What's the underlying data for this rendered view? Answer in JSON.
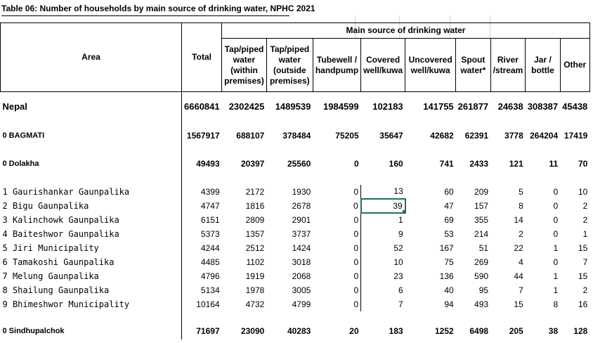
{
  "title": "Table 06: Number of households by main source of drinking water, NPHC 2021",
  "header": {
    "area": "Area",
    "total": "Total",
    "group": "Main source of drinking water",
    "cols": [
      "Tap/piped water (within premises)",
      "Tap/piped water (outside premises)",
      "Tubewell / handpump",
      "Covered well/kuwa",
      "Uncovered well/kuwa",
      "Spout water*",
      "River /stream",
      "Jar / bottle",
      "Other"
    ]
  },
  "rows": [
    {
      "area": "Nepal",
      "values": [
        "6660841",
        "2302425",
        "1489539",
        "1984599",
        "102183",
        "141755",
        "261877",
        "24638",
        "308387",
        "45438"
      ]
    },
    {
      "area": "0 BAGMATI",
      "values": [
        "1567917",
        "688107",
        "378484",
        "75205",
        "35647",
        "42682",
        "62391",
        "3778",
        "264204",
        "17419"
      ]
    },
    {
      "area": "0 Dolakha",
      "values": [
        "49493",
        "20397",
        "25560",
        "0",
        "160",
        "741",
        "2433",
        "121",
        "11",
        "70"
      ]
    },
    {
      "area": "1 Gaurishankar Gaunpalika",
      "values": [
        "4399",
        "2172",
        "1930",
        "0",
        "13",
        "60",
        "209",
        "5",
        "0",
        "10"
      ]
    },
    {
      "area": "2 Bigu Gaunpalika",
      "values": [
        "4747",
        "1816",
        "2678",
        "0",
        "39",
        "47",
        "157",
        "8",
        "0",
        "2"
      ]
    },
    {
      "area": "3 Kalinchowk Gaunpalika",
      "values": [
        "6151",
        "2809",
        "2901",
        "0",
        "1",
        "69",
        "355",
        "14",
        "0",
        "2"
      ]
    },
    {
      "area": "4 Baiteshwor Gaunpalika",
      "values": [
        "5373",
        "1357",
        "3737",
        "0",
        "9",
        "53",
        "214",
        "2",
        "0",
        "1"
      ]
    },
    {
      "area": "5 Jiri Municipality",
      "values": [
        "4244",
        "2512",
        "1424",
        "0",
        "52",
        "167",
        "51",
        "22",
        "1",
        "15"
      ]
    },
    {
      "area": "6 Tamakoshi Gaunpalika",
      "values": [
        "4485",
        "1102",
        "3018",
        "0",
        "10",
        "75",
        "269",
        "4",
        "0",
        "7"
      ]
    },
    {
      "area": "7 Melung Gaunpalika",
      "values": [
        "4796",
        "1919",
        "2068",
        "0",
        "23",
        "136",
        "590",
        "44",
        "1",
        "15"
      ]
    },
    {
      "area": "8 Shailung Gaunpalika",
      "values": [
        "5134",
        "1978",
        "3005",
        "0",
        "6",
        "40",
        "95",
        "7",
        "1",
        "2"
      ]
    },
    {
      "area": "9 Bhimeshwor Municipality",
      "values": [
        "10164",
        "4732",
        "4799",
        "0",
        "7",
        "94",
        "493",
        "15",
        "8",
        "16"
      ]
    },
    {
      "area": "0 Sindhupalchok",
      "values": [
        "71697",
        "23090",
        "40283",
        "20",
        "183",
        "1252",
        "6498",
        "205",
        "38",
        "128"
      ]
    }
  ],
  "colors": {
    "selection": "#217346",
    "gridline": "#d4d4d4"
  }
}
